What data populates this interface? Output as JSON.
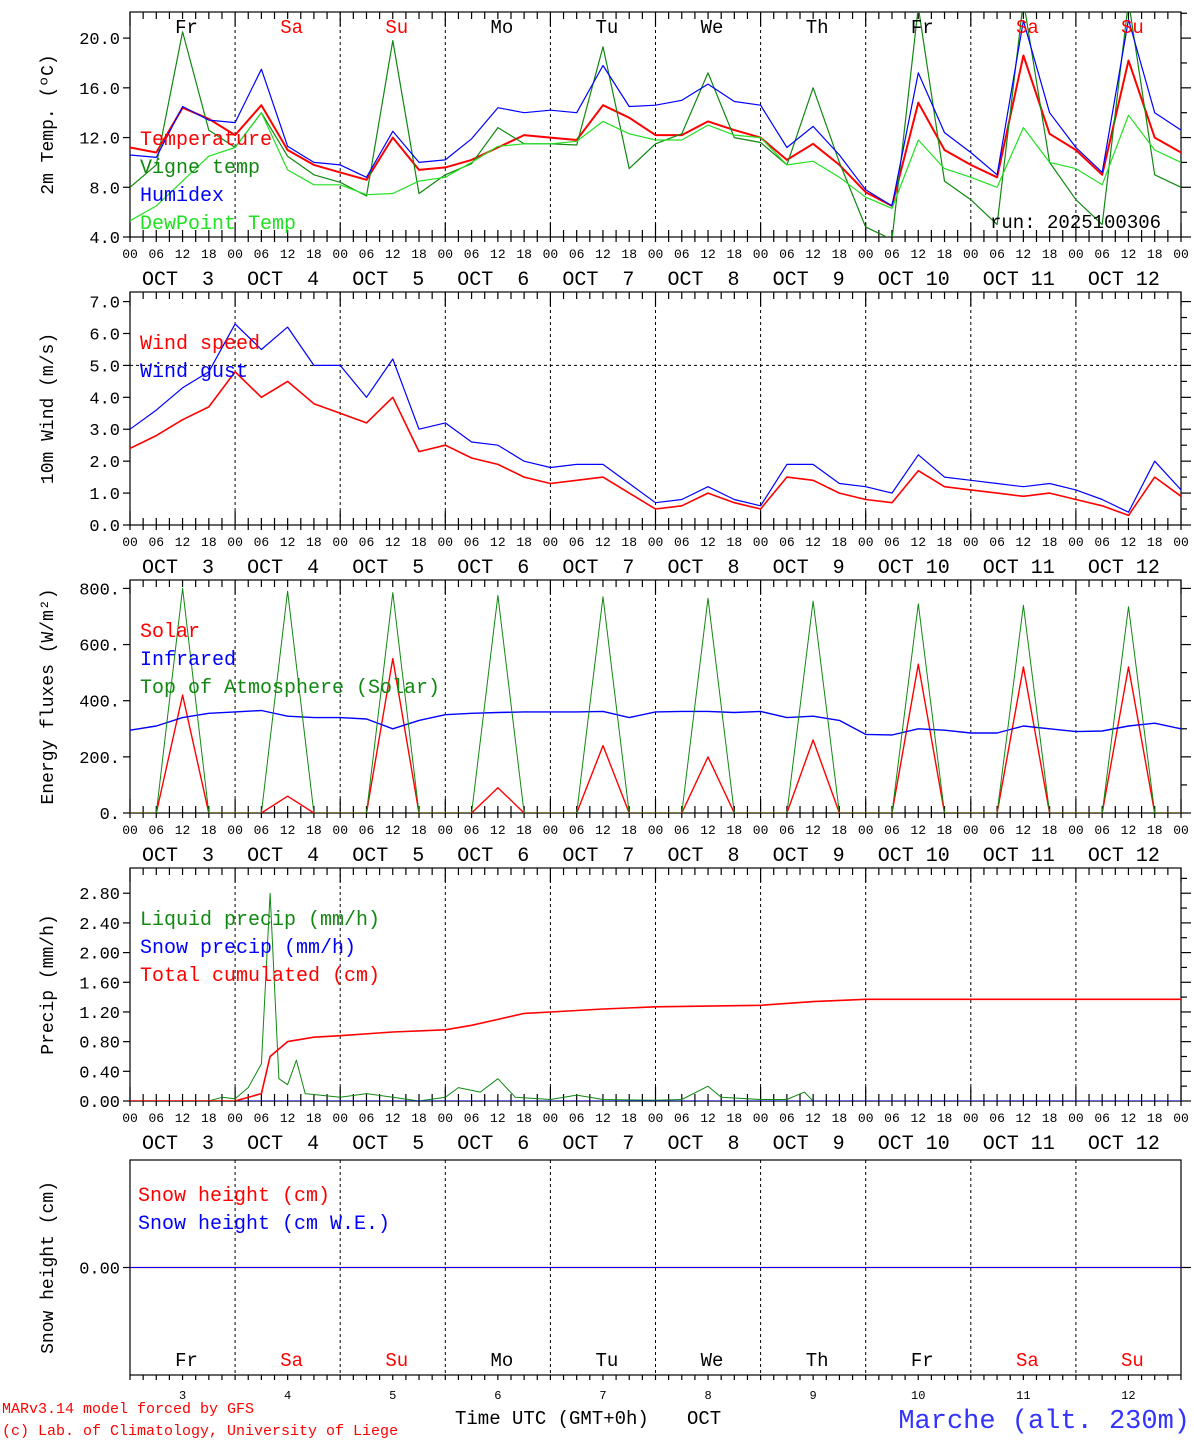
{
  "colors": {
    "red": "#ff0000",
    "darkgreen": "#118811",
    "blue": "#0000ff",
    "green": "#22e022",
    "weekend": "#ff0000",
    "location": "#3333ff"
  },
  "axis": {
    "hour_labels": [
      "00",
      "06",
      "12",
      "18"
    ],
    "date_labels": [
      "OCT  3",
      "OCT  4",
      "OCT  5",
      "OCT  6",
      "OCT  7",
      "OCT  8",
      "OCT  9",
      "OCT 10",
      "OCT 11",
      "OCT 12"
    ],
    "day_names": [
      "Fr",
      "Sa",
      "Su",
      "Mo",
      "Tu",
      "We",
      "Th",
      "Fr",
      "Sa",
      "Su"
    ],
    "weekend": [
      false,
      true,
      true,
      false,
      false,
      false,
      false,
      false,
      true,
      true
    ],
    "day_numbers": [
      "3",
      "4",
      "5",
      "6",
      "7",
      "8",
      "9",
      "10",
      "11",
      "12"
    ],
    "xlabel": "Time UTC (GMT+0h)",
    "xlabel_month": "OCT"
  },
  "run_label": "run: 2025100306",
  "footer": {
    "model": "MARv3.14 model forced by GFS",
    "credit": "(c) Lab. of Climatology, University of Liege",
    "location": "Marche (alt. 230m)"
  },
  "chart_data": [
    {
      "id": "temp",
      "type": "line",
      "ylabel": "2m Temp. (ºC)",
      "ylim": [
        4,
        22.1
      ],
      "x_start": "OCT 3 00 UTC",
      "x_step_hours": 6,
      "yticks": [
        {
          "v": 4,
          "label": "4.0"
        },
        {
          "v": 8,
          "label": "8.0"
        },
        {
          "v": 12,
          "label": "12.0"
        },
        {
          "v": 16,
          "label": "16.0"
        },
        {
          "v": 20,
          "label": "20.0"
        }
      ],
      "series": [
        {
          "name": "Temperature",
          "color": "red",
          "width": 2,
          "values": [
            11.2,
            10.8,
            14.4,
            13.5,
            12.2,
            14.6,
            11.0,
            9.8,
            9.2,
            8.6,
            12.0,
            9.4,
            9.6,
            10.2,
            11.2,
            12.2,
            12.0,
            11.8,
            14.6,
            13.6,
            12.2,
            12.2,
            13.3,
            12.6,
            12.0,
            10.2,
            11.5,
            9.8,
            7.6,
            6.5,
            14.8,
            11.0,
            9.8,
            8.8,
            18.6,
            12.3,
            11.0,
            9.0,
            18.2,
            12.0,
            10.8
          ]
        },
        {
          "name": "Vigne temp",
          "color": "darkgreen",
          "width": 1.2,
          "values": [
            8.0,
            9.8,
            20.5,
            12.6,
            11.2,
            14.0,
            10.5,
            9.0,
            8.4,
            7.3,
            19.8,
            7.5,
            9.0,
            9.9,
            12.8,
            11.5,
            11.5,
            11.4,
            19.3,
            9.5,
            11.5,
            12.3,
            17.2,
            12.0,
            11.6,
            9.8,
            16.0,
            10.0,
            4.8,
            3.8,
            22.5,
            8.5,
            7.0,
            5.0,
            23.0,
            10.0,
            7.0,
            5.0,
            23.0,
            9.0,
            8.0
          ]
        },
        {
          "name": "Humidex",
          "color": "blue",
          "width": 1.2,
          "values": [
            10.6,
            10.4,
            14.5,
            13.4,
            13.2,
            17.5,
            11.3,
            10.0,
            9.8,
            8.8,
            12.5,
            10.0,
            10.2,
            11.9,
            14.4,
            14.0,
            14.2,
            14.0,
            17.8,
            14.5,
            14.6,
            15.0,
            16.3,
            14.9,
            14.6,
            11.2,
            12.9,
            10.6,
            7.8,
            6.5,
            17.2,
            12.4,
            10.8,
            9.0,
            21.4,
            14.0,
            11.2,
            9.2,
            21.5,
            14.0,
            12.6
          ]
        },
        {
          "name": "DewPoint Temp",
          "color": "green",
          "width": 1.2,
          "values": [
            5.3,
            6.5,
            8.5,
            10.5,
            11.2,
            14.0,
            9.4,
            8.2,
            8.2,
            7.4,
            7.5,
            8.5,
            8.8,
            10.0,
            11.3,
            11.5,
            11.5,
            11.7,
            13.3,
            12.3,
            11.8,
            11.8,
            13.0,
            12.2,
            12.0,
            9.8,
            10.1,
            8.8,
            7.2,
            6.3,
            11.8,
            9.5,
            8.8,
            8.0,
            12.8,
            10.0,
            9.5,
            8.2,
            13.8,
            11.0,
            10.0
          ]
        }
      ]
    },
    {
      "id": "wind",
      "type": "line",
      "ylabel": "10m Wind (m/s)",
      "ylim": [
        0,
        7.3
      ],
      "reference_line": 5.0,
      "x_start": "OCT 3 00 UTC",
      "x_step_hours": 6,
      "yticks": [
        {
          "v": 0,
          "label": "0.0"
        },
        {
          "v": 1,
          "label": "1.0"
        },
        {
          "v": 2,
          "label": "2.0"
        },
        {
          "v": 3,
          "label": "3.0"
        },
        {
          "v": 4,
          "label": "4.0"
        },
        {
          "v": 5,
          "label": "5.0"
        },
        {
          "v": 6,
          "label": "6.0"
        },
        {
          "v": 7,
          "label": "7.0"
        }
      ],
      "series": [
        {
          "name": "Wind speed",
          "color": "red",
          "width": 1.6,
          "values": [
            2.4,
            2.8,
            3.3,
            3.7,
            4.8,
            4.0,
            4.5,
            3.8,
            3.5,
            3.2,
            4.0,
            2.3,
            2.5,
            2.1,
            1.9,
            1.5,
            1.3,
            1.4,
            1.5,
            1.0,
            0.5,
            0.6,
            1.0,
            0.7,
            0.5,
            1.5,
            1.4,
            1.0,
            0.8,
            0.7,
            1.7,
            1.2,
            1.1,
            1.0,
            0.9,
            1.0,
            0.8,
            0.6,
            0.3,
            1.5,
            0.9
          ]
        },
        {
          "name": "Wind gust",
          "color": "blue",
          "width": 1.2,
          "values": [
            3.0,
            3.6,
            4.3,
            4.8,
            6.3,
            5.5,
            6.2,
            5.0,
            5.0,
            4.0,
            5.2,
            3.0,
            3.2,
            2.6,
            2.5,
            2.0,
            1.8,
            1.9,
            1.9,
            1.3,
            0.7,
            0.8,
            1.2,
            0.8,
            0.6,
            1.9,
            1.9,
            1.3,
            1.2,
            1.0,
            2.2,
            1.5,
            1.4,
            1.3,
            1.2,
            1.3,
            1.1,
            0.8,
            0.4,
            2.0,
            1.1
          ]
        }
      ]
    },
    {
      "id": "energy",
      "type": "line",
      "ylabel": "Energy fluxes (W/m²)",
      "ylim": [
        0,
        830
      ],
      "x_start": "OCT 3 00 UTC",
      "x_step_hours": 6,
      "yticks": [
        {
          "v": 0,
          "label": "0."
        },
        {
          "v": 200,
          "label": "200."
        },
        {
          "v": 400,
          "label": "400."
        },
        {
          "v": 600,
          "label": "600."
        },
        {
          "v": 800,
          "label": "800."
        }
      ],
      "series": [
        {
          "name": "Solar",
          "color": "red",
          "width": 1.4,
          "values": [
            0,
            0,
            420,
            0,
            0,
            0,
            60,
            0,
            0,
            0,
            550,
            0,
            0,
            0,
            90,
            0,
            0,
            0,
            240,
            0,
            0,
            0,
            200,
            0,
            0,
            0,
            260,
            0,
            0,
            0,
            530,
            0,
            0,
            0,
            520,
            0,
            0,
            0,
            520,
            0,
            0
          ]
        },
        {
          "name": "Infrared",
          "color": "blue",
          "width": 1.4,
          "values": [
            295,
            310,
            340,
            355,
            360,
            365,
            345,
            340,
            340,
            335,
            300,
            330,
            350,
            355,
            358,
            360,
            360,
            360,
            362,
            340,
            360,
            362,
            362,
            358,
            362,
            340,
            345,
            330,
            280,
            278,
            300,
            295,
            285,
            285,
            310,
            300,
            290,
            292,
            310,
            320,
            300
          ]
        },
        {
          "name": "Top of Atmosphere (Solar)",
          "color": "darkgreen",
          "width": 1,
          "values": [
            0,
            0,
            800,
            0,
            0,
            0,
            790,
            0,
            0,
            0,
            785,
            0,
            0,
            0,
            775,
            0,
            0,
            0,
            770,
            0,
            0,
            0,
            765,
            0,
            0,
            0,
            755,
            0,
            0,
            0,
            745,
            0,
            0,
            0,
            740,
            0,
            0,
            0,
            735,
            0,
            0
          ]
        }
      ]
    },
    {
      "id": "precip",
      "type": "line",
      "ylabel": "Precip (mm/h)",
      "ylim": [
        0,
        3.14
      ],
      "x_start": "OCT 3 00 UTC",
      "x_unit": "hours",
      "yticks": [
        {
          "v": 0,
          "label": "0.00"
        },
        {
          "v": 0.4,
          "label": "0.40"
        },
        {
          "v": 0.8,
          "label": "0.80"
        },
        {
          "v": 1.2,
          "label": "1.20"
        },
        {
          "v": 1.6,
          "label": "1.60"
        },
        {
          "v": 2.0,
          "label": "2.00"
        },
        {
          "v": 2.4,
          "label": "2.40"
        },
        {
          "v": 2.8,
          "label": "2.80"
        }
      ],
      "series": [
        {
          "name": "Liquid precip (mm/h)",
          "color": "darkgreen",
          "width": 1,
          "points": [
            [
              0,
              0
            ],
            [
              18,
              0
            ],
            [
              21,
              0.05
            ],
            [
              24,
              0.03
            ],
            [
              27,
              0.18
            ],
            [
              30,
              0.5
            ],
            [
              32,
              2.8
            ],
            [
              34,
              0.3
            ],
            [
              36,
              0.22
            ],
            [
              38,
              0.55
            ],
            [
              40,
              0.1
            ],
            [
              48,
              0.05
            ],
            [
              54,
              0.1
            ],
            [
              60,
              0.05
            ],
            [
              66,
              0
            ],
            [
              72,
              0.05
            ],
            [
              75,
              0.18
            ],
            [
              80,
              0.12
            ],
            [
              84,
              0.3
            ],
            [
              88,
              0.05
            ],
            [
              96,
              0.02
            ],
            [
              102,
              0.08
            ],
            [
              108,
              0.02
            ],
            [
              120,
              0.01
            ],
            [
              126,
              0.02
            ],
            [
              132,
              0.2
            ],
            [
              135,
              0.05
            ],
            [
              144,
              0.02
            ],
            [
              150,
              0.02
            ],
            [
              154,
              0.12
            ],
            [
              156,
              0
            ],
            [
              240,
              0
            ]
          ]
        },
        {
          "name": "Snow precip (mm/h)",
          "color": "blue",
          "width": 1,
          "points": [
            [
              0,
              0
            ],
            [
              240,
              0
            ]
          ]
        },
        {
          "name": "Total cumulated (cm)",
          "color": "red",
          "width": 1.6,
          "points": [
            [
              0,
              0
            ],
            [
              24,
              0
            ],
            [
              30,
              0.1
            ],
            [
              32,
              0.6
            ],
            [
              36,
              0.8
            ],
            [
              42,
              0.86
            ],
            [
              48,
              0.88
            ],
            [
              60,
              0.93
            ],
            [
              72,
              0.96
            ],
            [
              78,
              1.02
            ],
            [
              84,
              1.1
            ],
            [
              90,
              1.18
            ],
            [
              96,
              1.2
            ],
            [
              108,
              1.24
            ],
            [
              120,
              1.27
            ],
            [
              144,
              1.29
            ],
            [
              156,
              1.34
            ],
            [
              168,
              1.37
            ],
            [
              240,
              1.37
            ]
          ]
        }
      ]
    },
    {
      "id": "snow",
      "type": "line",
      "ylabel": "Snow height (cm)",
      "ylim": [
        -1,
        1
      ],
      "x_start": "OCT 3 00 UTC",
      "x_unit": "hours",
      "yticks": [
        {
          "v": 0,
          "label": "0.00"
        }
      ],
      "series": [
        {
          "name": "Snow height (cm)",
          "color": "red",
          "width": 1.2,
          "points": [
            [
              0,
              0
            ],
            [
              240,
              0
            ]
          ]
        },
        {
          "name": "Snow height (cm W.E.)",
          "color": "blue",
          "width": 1,
          "points": [
            [
              0,
              0
            ],
            [
              240,
              0
            ]
          ]
        }
      ]
    }
  ]
}
